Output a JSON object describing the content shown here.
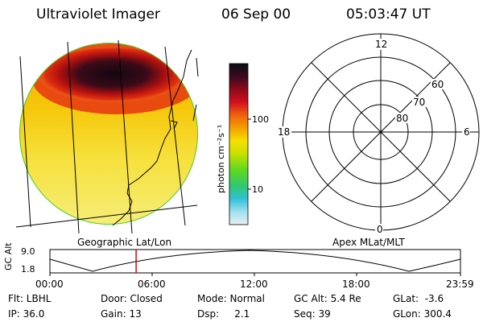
{
  "header": {
    "title": "Ultraviolet Imager",
    "date": "06 Sep 00",
    "time": "05:03:47 UT"
  },
  "colorbar": {
    "unit_label": "photon cm⁻²s⁻¹",
    "ticks": [
      "100",
      "10"
    ]
  },
  "polar_plot": {
    "mlt_labels": {
      "top": "12",
      "left": "18",
      "right": "6",
      "bottom": "0"
    },
    "lat_labels": [
      "60",
      "70",
      "80"
    ]
  },
  "projection_labels": {
    "left": "Geographic Lat/Lon",
    "right": "Apex MLat/MLT"
  },
  "altitude_strip": {
    "axis_title": "GC Alt",
    "y_ticks": [
      "9.0",
      "1.8"
    ],
    "x_ticks": [
      "00:00",
      "06:00",
      "12:00",
      "18:00",
      "23:59"
    ],
    "current_time_marker_fraction": 0.21
  },
  "info": {
    "row1": [
      {
        "key": "flt",
        "text": "Flt: LBHL"
      },
      {
        "key": "door",
        "text": "Door: Closed"
      },
      {
        "key": "mode",
        "text": "Mode: Normal"
      },
      {
        "key": "gcalt",
        "text": "GC Alt: 5.4 Re"
      },
      {
        "key": "glat",
        "text": "GLat:  -3.6"
      }
    ],
    "row2": [
      {
        "key": "ip",
        "text": "IP: 36.0"
      },
      {
        "key": "gain",
        "text": "Gain: 13"
      },
      {
        "key": "dsp",
        "text": "Dsp:     2.1"
      },
      {
        "key": "seq",
        "text": "Seq: 39"
      },
      {
        "key": "glon",
        "text": "GLon: 300.4"
      }
    ]
  },
  "colors": {
    "dark": "#1a0c1a",
    "red": "#b01010",
    "orange": "#f5a000",
    "yellow": "#f6e000",
    "green": "#40d020",
    "cyan": "#40c8e0",
    "marker": "#e00000"
  }
}
